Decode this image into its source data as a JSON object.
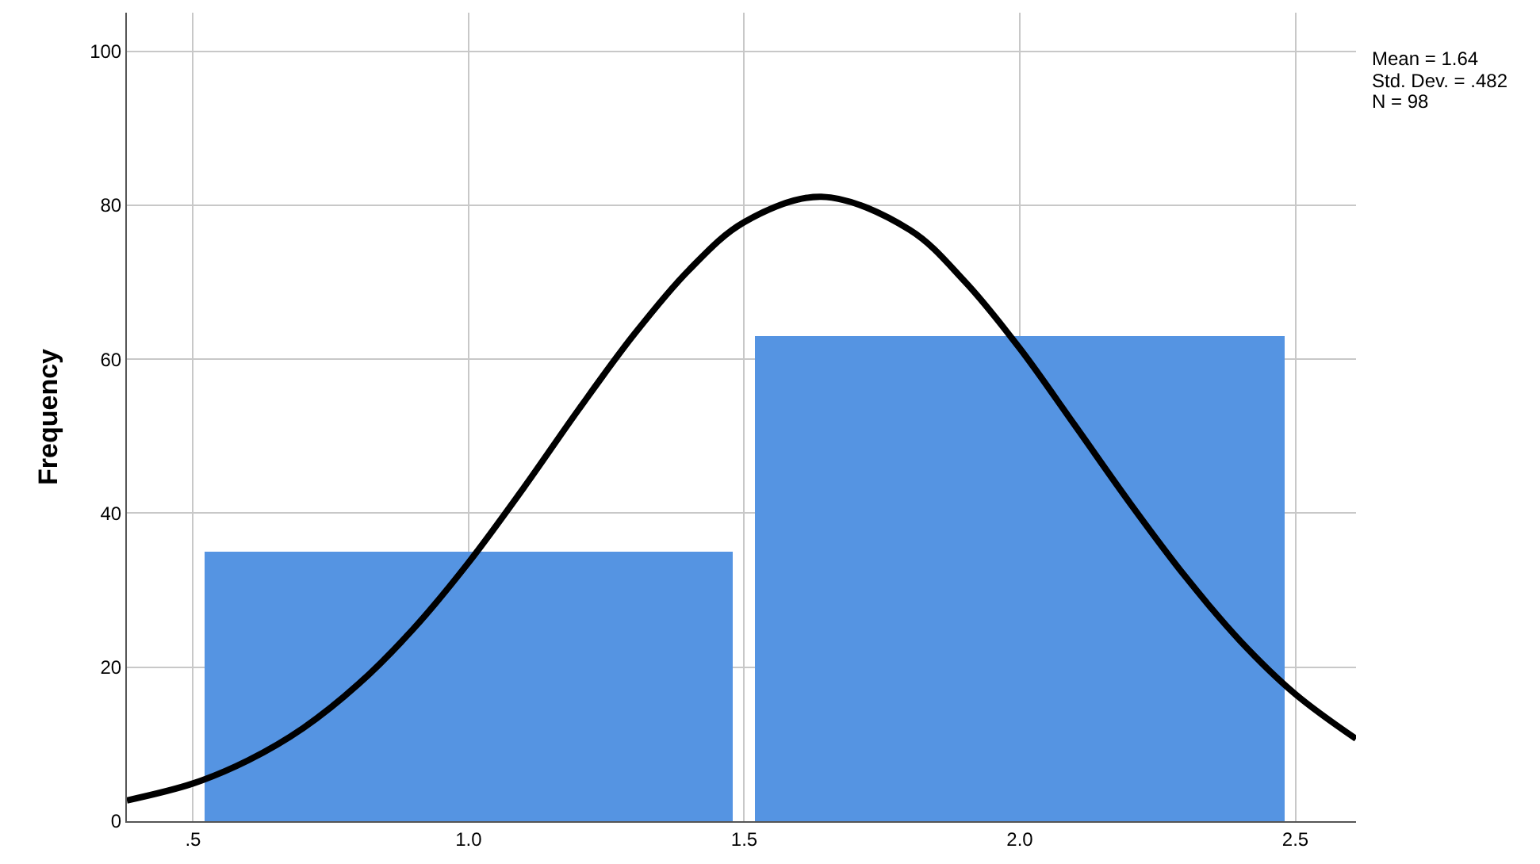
{
  "chart_data": {
    "type": "histogram",
    "ylabel": "Frequency",
    "bins": [
      0.5,
      1.5,
      2.5
    ],
    "values": [
      35,
      63
    ],
    "color": "#5594e2",
    "series": [
      {
        "type": "line",
        "color": "#000000",
        "x": [
          0.38,
          0.5,
          0.6,
          0.7,
          0.8,
          0.9,
          1.0,
          1.1,
          1.2,
          1.3,
          1.4,
          1.5,
          1.64,
          1.8,
          1.9,
          2.0,
          2.1,
          2.2,
          2.3,
          2.4,
          2.5,
          2.61
        ],
        "values": [
          2.7,
          4.9,
          7.9,
          12.1,
          17.8,
          25.0,
          33.6,
          43.3,
          53.5,
          63.2,
          71.6,
          77.8,
          81.1,
          76.8,
          70.1,
          61.4,
          51.4,
          41.3,
          31.8,
          23.4,
          16.5,
          10.7
        ]
      }
    ],
    "annotations": [
      "Mean = 1.64",
      "Std. Dev. = .482",
      "N = 98"
    ],
    "xlim": [
      0.38,
      2.61
    ],
    "ylim": [
      0,
      105
    ],
    "xticks": [
      {
        "value": 0.5,
        "label": ".5"
      },
      {
        "value": 1.0,
        "label": "1.0"
      },
      {
        "value": 1.5,
        "label": "1.5"
      },
      {
        "value": 2.0,
        "label": "2.0"
      },
      {
        "value": 2.5,
        "label": "2.5"
      }
    ],
    "yticks": [
      0,
      20,
      40,
      60,
      80,
      100
    ],
    "grid": true
  }
}
